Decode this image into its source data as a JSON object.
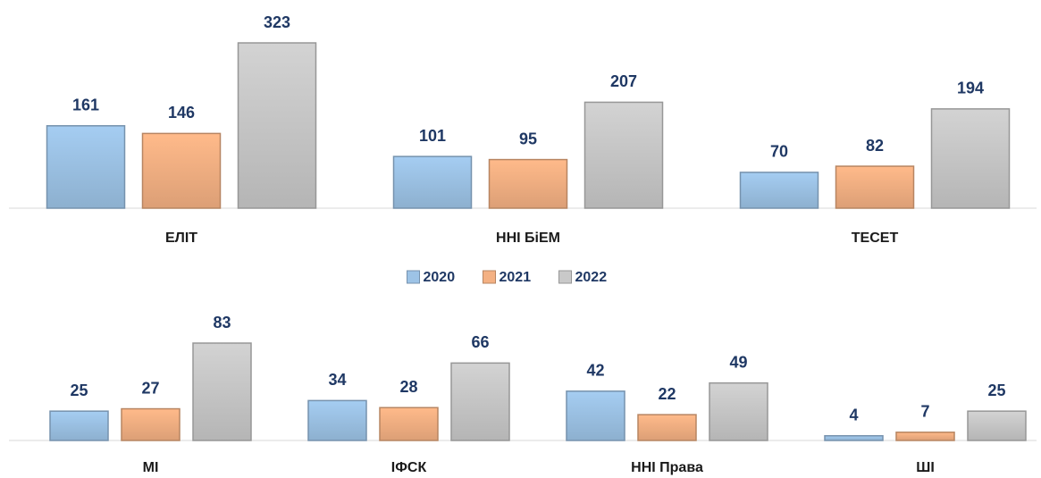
{
  "chart_data": [
    {
      "type": "bar",
      "categories": [
        "ЕЛІТ",
        "ННІ БіЕМ",
        "ТЕСЕТ"
      ],
      "series": [
        {
          "name": "2020",
          "color": "#9dc3e6",
          "values": [
            161,
            101,
            70
          ]
        },
        {
          "name": "2021",
          "color": "#f4b183",
          "values": [
            146,
            95,
            82
          ]
        },
        {
          "name": "2022",
          "color": "#c9c9c9",
          "values": [
            323,
            207,
            194
          ]
        }
      ]
    },
    {
      "type": "bar",
      "categories": [
        "МІ",
        "ІФСК",
        "ННІ Права",
        "ШІ"
      ],
      "series": [
        {
          "color": "#9dc3e6",
          "values": [
            25,
            34,
            42,
            4
          ]
        },
        {
          "color": "#f4b183",
          "values": [
            27,
            28,
            22,
            7
          ]
        },
        {
          "color": "#c9c9c9",
          "values": [
            83,
            66,
            49,
            25
          ]
        }
      ]
    }
  ]
}
